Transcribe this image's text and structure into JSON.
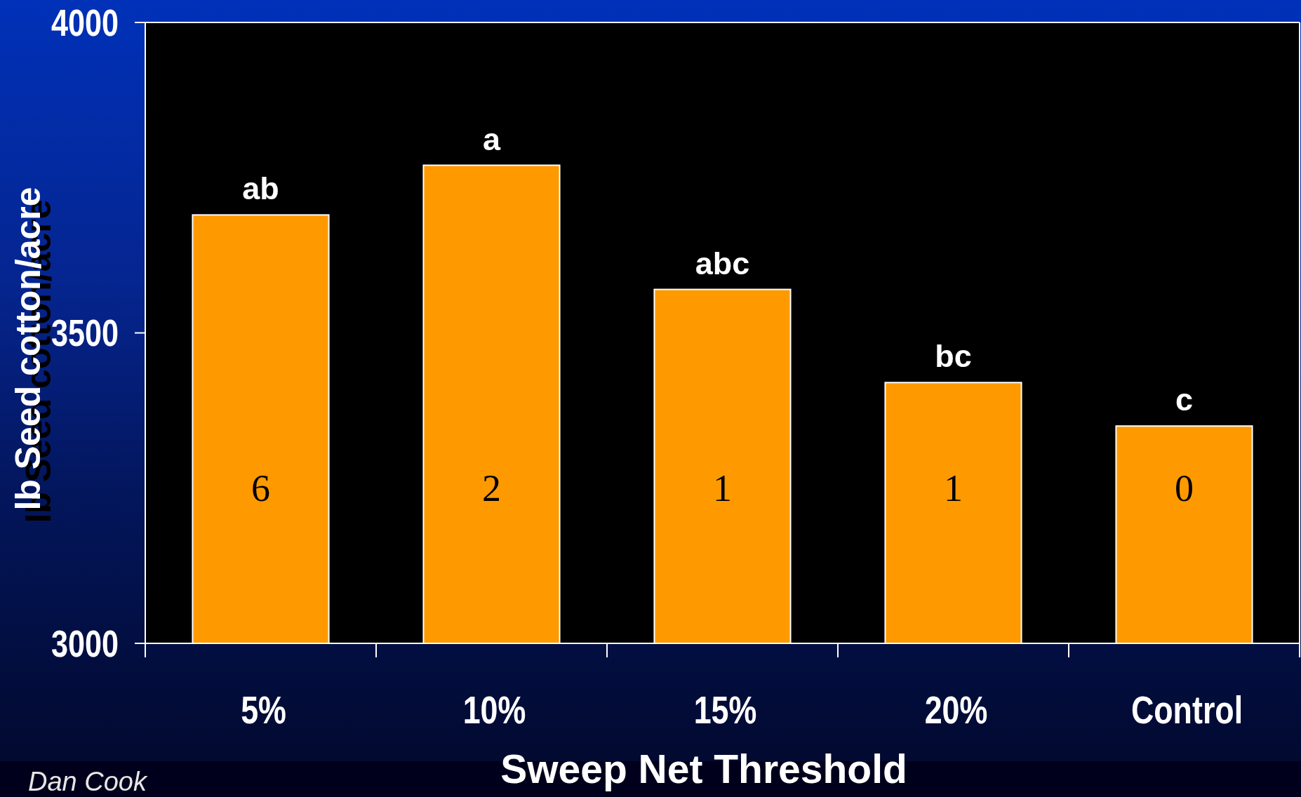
{
  "chart_data": {
    "type": "bar",
    "xlabel": "Sweep Net Threshold",
    "ylabel": "lb Seed cotton/acre",
    "categories": [
      "5%",
      "10%",
      "15%",
      "20%",
      "Control"
    ],
    "values": [
      3690,
      3770,
      3570,
      3420,
      3350
    ],
    "color": "#ff9900",
    "ylim": [
      3000,
      4000
    ],
    "yticks": [
      3000,
      3500,
      4000
    ],
    "annotations": [
      {
        "text": "ab",
        "x": "5%",
        "y": 3690
      },
      {
        "text": "a",
        "x": "10%",
        "y": 3770
      },
      {
        "text": "abc",
        "x": "15%",
        "y": 3570
      },
      {
        "text": "bc",
        "x": "20%",
        "y": 3420
      },
      {
        "text": "c",
        "x": "Control",
        "y": 3350
      },
      "6",
      "2",
      "1",
      "1",
      "0",
      "Dan Cook"
    ]
  }
}
